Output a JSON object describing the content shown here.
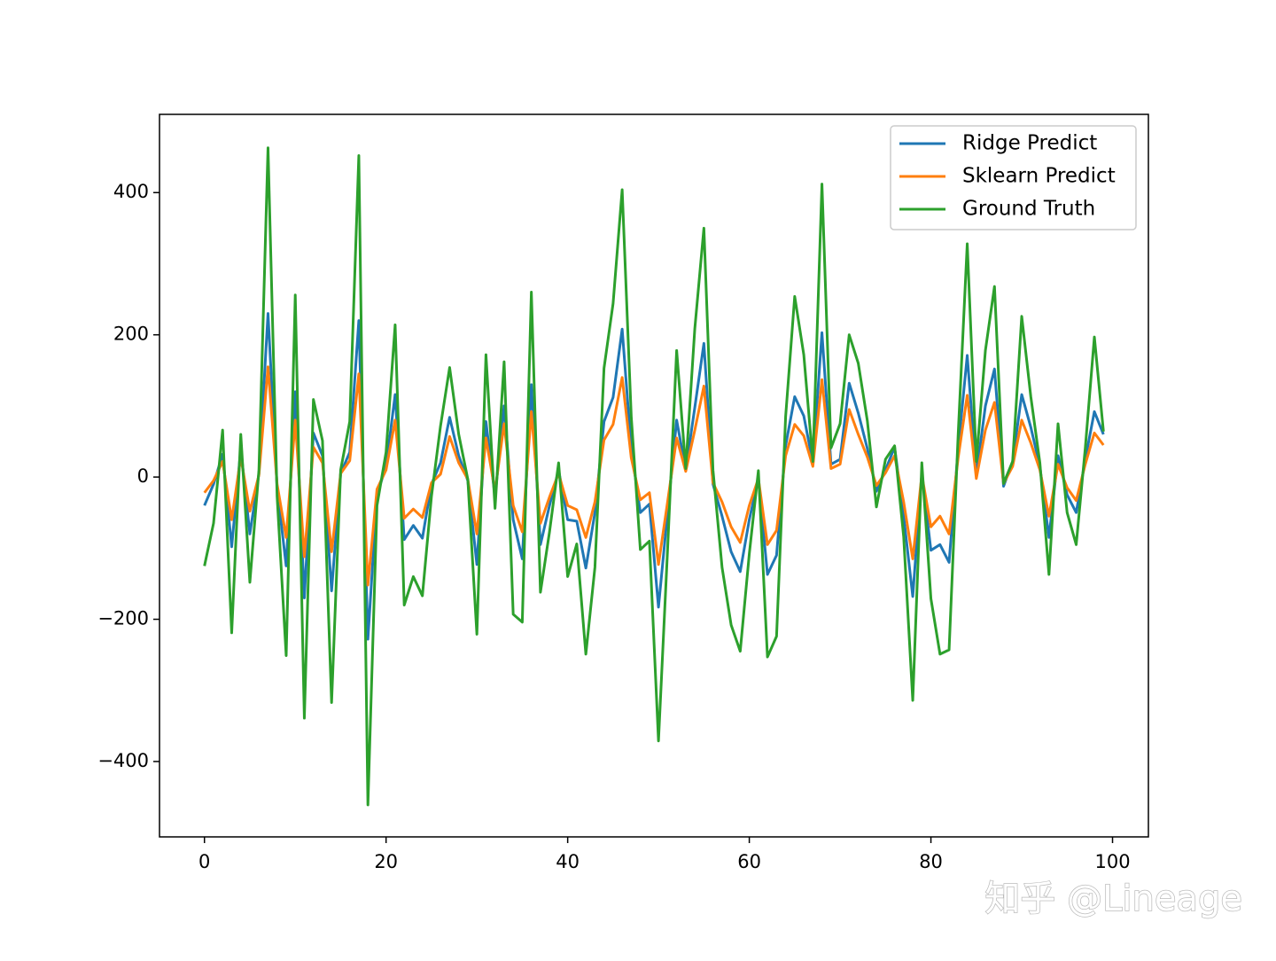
{
  "chart_data": {
    "type": "line",
    "x": [
      0,
      1,
      2,
      3,
      4,
      5,
      6,
      7,
      8,
      9,
      10,
      11,
      12,
      13,
      14,
      15,
      16,
      17,
      18,
      19,
      20,
      21,
      22,
      23,
      24,
      25,
      26,
      27,
      28,
      29,
      30,
      31,
      32,
      33,
      34,
      35,
      36,
      37,
      38,
      39,
      40,
      41,
      42,
      43,
      44,
      45,
      46,
      47,
      48,
      49,
      50,
      51,
      52,
      53,
      54,
      55,
      56,
      57,
      58,
      59,
      60,
      61,
      62,
      63,
      64,
      65,
      66,
      67,
      68,
      69,
      70,
      71,
      72,
      73,
      74,
      75,
      76,
      77,
      78,
      79,
      80,
      81,
      82,
      83,
      84,
      85,
      86,
      87,
      88,
      89,
      90,
      91,
      92,
      93,
      94,
      95,
      96,
      97,
      98,
      99
    ],
    "series": [
      {
        "name": "Ridge Predict",
        "color": "#1f77b4",
        "values": [
          -40,
          -10,
          32,
          -98,
          40,
          -80,
          5,
          230,
          -15,
          -125,
          120,
          -170,
          62,
          30,
          -160,
          5,
          35,
          220,
          -228,
          -25,
          15,
          116,
          -88,
          -68,
          -86,
          -10,
          20,
          84,
          30,
          -5,
          -123,
          78,
          -28,
          100,
          -60,
          -115,
          130,
          -95,
          -40,
          10,
          -60,
          -62,
          -128,
          -50,
          78,
          112,
          208,
          40,
          -50,
          -38,
          -183,
          -50,
          80,
          10,
          98,
          188,
          -10,
          -55,
          -105,
          -133,
          -60,
          -2,
          -137,
          -110,
          44,
          113,
          86,
          20,
          203,
          18,
          25,
          132,
          90,
          40,
          -20,
          10,
          42,
          -55,
          -168,
          5,
          -103,
          -95,
          -120,
          40,
          171,
          3,
          100,
          152,
          -13,
          22,
          116,
          70,
          15,
          -85,
          30,
          -25,
          -50,
          25,
          92,
          60
        ]
      },
      {
        "name": "Sklearn Predict",
        "color": "#ff7f0e",
        "values": [
          -22,
          -5,
          22,
          -60,
          28,
          -48,
          3,
          155,
          -10,
          -85,
          80,
          -112,
          42,
          20,
          -105,
          5,
          23,
          145,
          -152,
          -17,
          10,
          80,
          -58,
          -45,
          -57,
          -8,
          4,
          57,
          20,
          -3,
          -80,
          55,
          -20,
          75,
          -40,
          -77,
          92,
          -65,
          -28,
          5,
          -40,
          -46,
          -85,
          -35,
          52,
          74,
          140,
          27,
          -32,
          -22,
          -123,
          -35,
          55,
          8,
          66,
          128,
          -8,
          -35,
          -70,
          -92,
          -40,
          -2,
          -95,
          -75,
          30,
          74,
          58,
          15,
          137,
          12,
          18,
          95,
          60,
          28,
          -12,
          6,
          30,
          -35,
          -115,
          3,
          -70,
          -55,
          -80,
          27,
          115,
          -2,
          66,
          105,
          -9,
          15,
          80,
          48,
          10,
          -55,
          18,
          -15,
          -33,
          18,
          62,
          45
        ]
      },
      {
        "name": "Ground Truth",
        "color": "#2ca02c",
        "values": [
          -125,
          -65,
          66,
          -219,
          60,
          -148,
          10,
          463,
          -27,
          -251,
          256,
          -339,
          109,
          51,
          -317,
          10,
          78,
          452,
          -461,
          -40,
          35,
          214,
          -180,
          -140,
          -167,
          -27,
          72,
          154,
          60,
          -3,
          -221,
          172,
          -44,
          162,
          -193,
          -204,
          260,
          -162,
          -77,
          20,
          -140,
          -94,
          -249,
          -127,
          153,
          244,
          404,
          85,
          -102,
          -90,
          -371,
          -102,
          178,
          12,
          209,
          350,
          10,
          -127,
          -208,
          -245,
          -108,
          9,
          -253,
          -224,
          85,
          254,
          172,
          22,
          412,
          41,
          75,
          200,
          160,
          79,
          -42,
          25,
          44,
          -84,
          -314,
          20,
          -171,
          -249,
          -243,
          60,
          328,
          22,
          178,
          268,
          -9,
          22,
          226,
          113,
          20,
          -137,
          75,
          -50,
          -95,
          41,
          197,
          64
        ]
      }
    ],
    "xlim": [
      -4.95,
      103.95
    ],
    "ylim": [
      -506,
      510
    ],
    "xticks": [
      0,
      20,
      40,
      60,
      80,
      100
    ],
    "yticks": [
      {
        "value": -400,
        "label": "−400"
      },
      {
        "value": -200,
        "label": "−200"
      },
      0,
      200,
      400
    ],
    "legend": "upper right",
    "watermark": "知乎 @Lineage"
  }
}
